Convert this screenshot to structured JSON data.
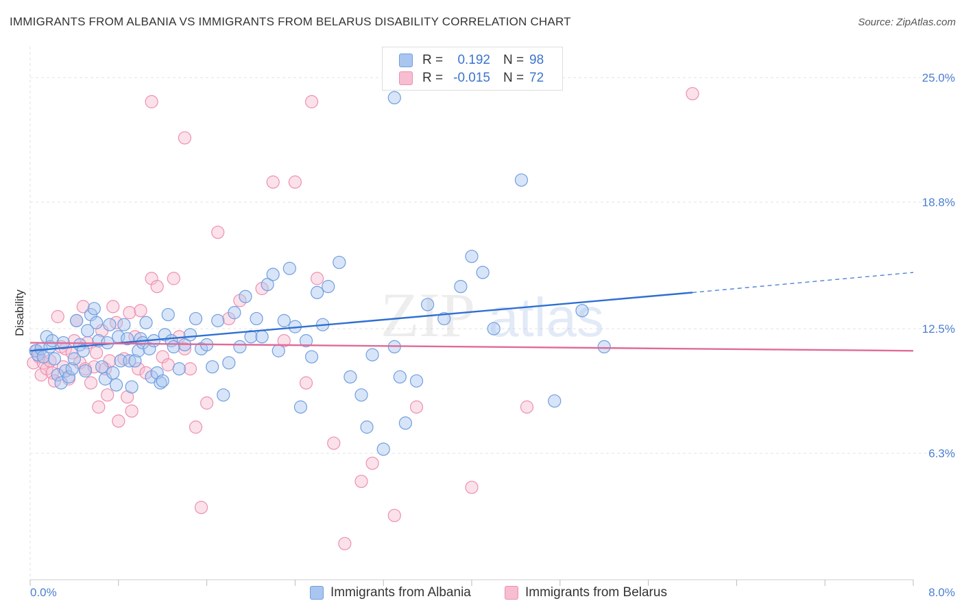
{
  "header": {
    "title": "IMMIGRANTS FROM ALBANIA VS IMMIGRANTS FROM BELARUS DISABILITY CORRELATION CHART",
    "source": "Source: ZipAtlas.com"
  },
  "legend_stats": [
    {
      "r_label": "R =",
      "r_value": "0.192",
      "n_label": "N =",
      "n_value": "98"
    },
    {
      "r_label": "R =",
      "r_value": "-0.015",
      "n_label": "N =",
      "n_value": "72"
    }
  ],
  "colors": {
    "albania_fill": "#a9c6f0",
    "albania_stroke": "#6f9ee0",
    "albania_line": "#2f6fd1",
    "belarus_fill": "#f7bdd0",
    "belarus_stroke": "#ee8fb0",
    "belarus_line": "#e06a97",
    "grid": "#e3e3e3",
    "tick_label": "#4a7fd0"
  },
  "watermark": {
    "zip": "ZIP",
    "atlas": "atlas"
  },
  "chart_data": {
    "type": "scatter",
    "title": "IMMIGRANTS FROM ALBANIA VS IMMIGRANTS FROM BELARUS DISABILITY CORRELATION CHART",
    "xlabel": "",
    "ylabel": "Disability",
    "xlim": [
      0,
      8
    ],
    "ylim": [
      0,
      26.2
    ],
    "x_tick_labels": [
      "0.0%",
      "8.0%"
    ],
    "y_ticks": [
      6.3,
      12.5,
      18.8,
      25.0
    ],
    "y_tick_labels": [
      "6.3%",
      "12.5%",
      "18.8%",
      "25.0%"
    ],
    "grid": true,
    "legend_position": "bottom",
    "series": [
      {
        "name": "Immigrants from Albania",
        "trend": {
          "x": [
            0,
            6.0
          ],
          "y": [
            11.4,
            14.3
          ],
          "dashed_extension_to": [
            8.0,
            15.3
          ]
        },
        "points": [
          [
            0.05,
            11.4
          ],
          [
            0.07,
            11.2
          ],
          [
            0.1,
            11.5
          ],
          [
            0.12,
            11.1
          ],
          [
            0.15,
            12.1
          ],
          [
            0.18,
            11.6
          ],
          [
            0.2,
            11.9
          ],
          [
            0.22,
            11.0
          ],
          [
            0.25,
            10.2
          ],
          [
            0.28,
            9.8
          ],
          [
            0.3,
            11.8
          ],
          [
            0.32,
            10.4
          ],
          [
            0.35,
            10.1
          ],
          [
            0.38,
            10.5
          ],
          [
            0.4,
            11.0
          ],
          [
            0.42,
            12.9
          ],
          [
            0.45,
            11.7
          ],
          [
            0.48,
            11.4
          ],
          [
            0.5,
            10.4
          ],
          [
            0.52,
            12.4
          ],
          [
            0.55,
            13.2
          ],
          [
            0.58,
            13.5
          ],
          [
            0.6,
            12.8
          ],
          [
            0.62,
            11.9
          ],
          [
            0.65,
            10.6
          ],
          [
            0.68,
            10.0
          ],
          [
            0.7,
            11.8
          ],
          [
            0.72,
            12.7
          ],
          [
            0.75,
            10.3
          ],
          [
            0.78,
            9.7
          ],
          [
            0.8,
            12.1
          ],
          [
            0.82,
            10.9
          ],
          [
            0.85,
            12.7
          ],
          [
            0.88,
            12.0
          ],
          [
            0.9,
            10.9
          ],
          [
            0.92,
            9.6
          ],
          [
            0.95,
            10.9
          ],
          [
            0.98,
            11.4
          ],
          [
            1.0,
            12.0
          ],
          [
            1.02,
            11.8
          ],
          [
            1.05,
            12.8
          ],
          [
            1.08,
            11.5
          ],
          [
            1.1,
            10.1
          ],
          [
            1.12,
            11.9
          ],
          [
            1.15,
            10.3
          ],
          [
            1.18,
            9.8
          ],
          [
            1.2,
            9.9
          ],
          [
            1.22,
            12.2
          ],
          [
            1.25,
            13.2
          ],
          [
            1.28,
            11.9
          ],
          [
            1.3,
            11.6
          ],
          [
            1.35,
            10.5
          ],
          [
            1.4,
            11.7
          ],
          [
            1.45,
            12.2
          ],
          [
            1.5,
            13.0
          ],
          [
            1.55,
            11.5
          ],
          [
            1.6,
            11.7
          ],
          [
            1.65,
            10.6
          ],
          [
            1.7,
            12.9
          ],
          [
            1.75,
            9.2
          ],
          [
            1.8,
            10.8
          ],
          [
            1.85,
            13.3
          ],
          [
            1.9,
            11.6
          ],
          [
            1.95,
            14.1
          ],
          [
            2.0,
            12.1
          ],
          [
            2.05,
            13.0
          ],
          [
            2.1,
            12.1
          ],
          [
            2.15,
            14.7
          ],
          [
            2.2,
            15.2
          ],
          [
            2.25,
            11.4
          ],
          [
            2.3,
            12.9
          ],
          [
            2.35,
            15.5
          ],
          [
            2.4,
            12.6
          ],
          [
            2.45,
            8.6
          ],
          [
            2.5,
            11.9
          ],
          [
            2.55,
            11.1
          ],
          [
            2.6,
            14.3
          ],
          [
            2.65,
            12.7
          ],
          [
            2.7,
            14.6
          ],
          [
            2.8,
            15.8
          ],
          [
            2.9,
            10.1
          ],
          [
            3.0,
            9.2
          ],
          [
            3.05,
            7.6
          ],
          [
            3.1,
            11.2
          ],
          [
            3.2,
            6.5
          ],
          [
            3.3,
            11.6
          ],
          [
            3.35,
            10.1
          ],
          [
            3.4,
            7.8
          ],
          [
            3.5,
            9.9
          ],
          [
            3.6,
            13.7
          ],
          [
            3.75,
            13.0
          ],
          [
            3.9,
            14.6
          ],
          [
            4.0,
            16.1
          ],
          [
            4.1,
            15.3
          ],
          [
            4.2,
            12.5
          ],
          [
            4.45,
            19.9
          ],
          [
            4.75,
            8.9
          ],
          [
            5.0,
            13.4
          ],
          [
            5.2,
            11.6
          ],
          [
            3.3,
            24.0
          ]
        ]
      },
      {
        "name": "Immigrants from Belarus",
        "trend": {
          "x": [
            0,
            8.0
          ],
          "y": [
            11.8,
            11.4
          ]
        },
        "points": [
          [
            0.03,
            10.8
          ],
          [
            0.06,
            11.4
          ],
          [
            0.08,
            11.1
          ],
          [
            0.1,
            10.2
          ],
          [
            0.12,
            10.8
          ],
          [
            0.15,
            10.5
          ],
          [
            0.18,
            10.9
          ],
          [
            0.2,
            10.3
          ],
          [
            0.22,
            9.9
          ],
          [
            0.25,
            13.1
          ],
          [
            0.28,
            11.6
          ],
          [
            0.3,
            10.6
          ],
          [
            0.32,
            11.5
          ],
          [
            0.35,
            10.0
          ],
          [
            0.38,
            11.3
          ],
          [
            0.4,
            11.9
          ],
          [
            0.42,
            12.9
          ],
          [
            0.45,
            10.8
          ],
          [
            0.48,
            13.6
          ],
          [
            0.5,
            10.5
          ],
          [
            0.52,
            11.8
          ],
          [
            0.55,
            9.8
          ],
          [
            0.58,
            10.6
          ],
          [
            0.6,
            11.3
          ],
          [
            0.62,
            8.6
          ],
          [
            0.65,
            12.4
          ],
          [
            0.68,
            10.5
          ],
          [
            0.7,
            9.2
          ],
          [
            0.72,
            10.9
          ],
          [
            0.75,
            13.6
          ],
          [
            0.78,
            12.8
          ],
          [
            0.8,
            7.9
          ],
          [
            0.85,
            11.0
          ],
          [
            0.88,
            9.1
          ],
          [
            0.9,
            13.3
          ],
          [
            0.92,
            8.4
          ],
          [
            0.95,
            12.1
          ],
          [
            0.98,
            10.5
          ],
          [
            1.0,
            13.4
          ],
          [
            1.05,
            10.3
          ],
          [
            1.1,
            15.0
          ],
          [
            1.15,
            14.6
          ],
          [
            1.2,
            11.1
          ],
          [
            1.25,
            10.7
          ],
          [
            1.3,
            15.0
          ],
          [
            1.35,
            12.1
          ],
          [
            1.4,
            11.5
          ],
          [
            1.45,
            10.5
          ],
          [
            1.5,
            7.6
          ],
          [
            1.55,
            3.6
          ],
          [
            1.6,
            8.8
          ],
          [
            1.7,
            17.3
          ],
          [
            1.8,
            13.0
          ],
          [
            1.9,
            13.9
          ],
          [
            2.1,
            14.5
          ],
          [
            2.3,
            11.9
          ],
          [
            2.5,
            9.8
          ],
          [
            2.6,
            15.0
          ],
          [
            2.75,
            6.8
          ],
          [
            2.85,
            1.8
          ],
          [
            3.0,
            4.9
          ],
          [
            3.1,
            5.8
          ],
          [
            3.3,
            3.2
          ],
          [
            3.5,
            8.6
          ],
          [
            4.0,
            4.6
          ],
          [
            4.5,
            8.6
          ],
          [
            1.1,
            23.8
          ],
          [
            1.4,
            22.0
          ],
          [
            2.2,
            19.8
          ],
          [
            2.4,
            19.8
          ],
          [
            2.55,
            23.8
          ],
          [
            6.0,
            24.2
          ]
        ]
      }
    ]
  },
  "bottom_legend": {
    "albania": "Immigrants from Albania",
    "belarus": "Immigrants from Belarus"
  }
}
